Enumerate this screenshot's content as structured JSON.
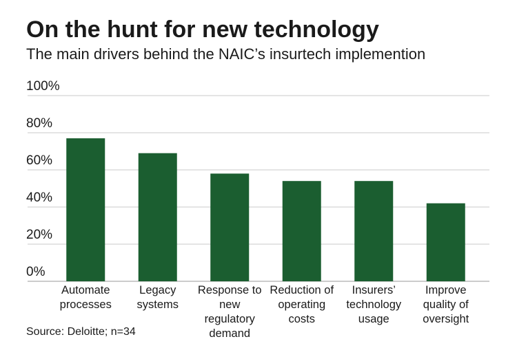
{
  "chart_data": {
    "type": "bar",
    "title": "On the hunt for new technology",
    "subtitle": "The main drivers behind the NAIC’s insurtech implemention",
    "source": "Source: Deloitte; n=34",
    "categories": [
      "Automate processes",
      "Legacy systems",
      "Response to new regulatory demand",
      "Reduction of operating costs",
      "Insurers’ technology usage",
      "Improve quality of oversight"
    ],
    "values": [
      77,
      69,
      58,
      54,
      54,
      42
    ],
    "color": "#1b5e30",
    "ylim": [
      0,
      100
    ],
    "yticks": [
      {
        "value": 0,
        "label": "0%"
      },
      {
        "value": 20,
        "label": "20%"
      },
      {
        "value": 40,
        "label": "40%"
      },
      {
        "value": 60,
        "label": "60%"
      },
      {
        "value": 80,
        "label": "80%"
      },
      {
        "value": 100,
        "label": "100%"
      }
    ],
    "grid": true
  }
}
